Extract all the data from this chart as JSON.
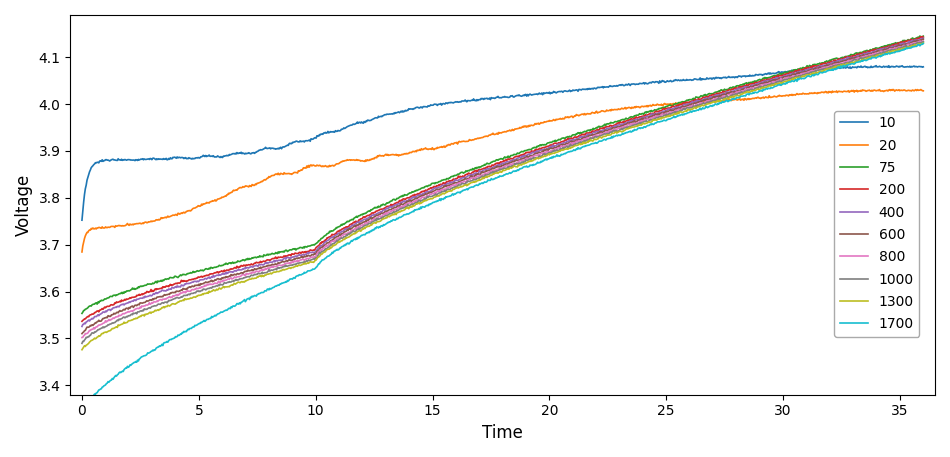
{
  "title": "",
  "xlabel": "Time",
  "ylabel": "Voltage",
  "xlim": [
    -0.5,
    36.5
  ],
  "ylim": [
    3.38,
    4.19
  ],
  "xticks": [
    0,
    5,
    10,
    15,
    20,
    25,
    30,
    35
  ],
  "yticks": [
    3.4,
    3.5,
    3.6,
    3.7,
    3.8,
    3.9,
    4.0,
    4.1
  ],
  "legend_labels": [
    "10",
    "20",
    "75",
    "200",
    "400",
    "600",
    "800",
    "1000",
    "1300",
    "1700"
  ],
  "series_colors": [
    "#1f77b4",
    "#ff7f0e",
    "#2ca02c",
    "#d62728",
    "#9467bd",
    "#8c564b",
    "#e377c2",
    "#7f7f7f",
    "#bcbd22",
    "#17becf"
  ],
  "figsize": [
    9.5,
    4.57
  ],
  "dpi": 100,
  "background_color": "#ffffff"
}
